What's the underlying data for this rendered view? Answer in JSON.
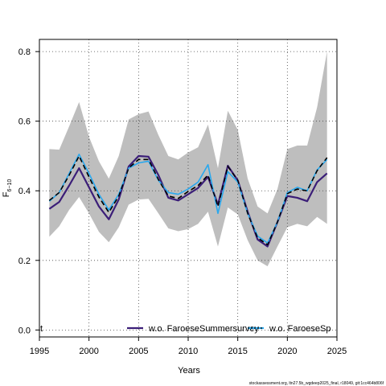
{
  "chart_data": {
    "type": "line",
    "title": "",
    "xlabel": "Years",
    "ylabel_main": "F",
    "ylabel_sub": "6−10",
    "xlim": [
      1995,
      2025
    ],
    "ylim": [
      -0.02,
      0.835
    ],
    "x_ticks": [
      1995,
      2000,
      2005,
      2010,
      2015,
      2020,
      2025
    ],
    "y_ticks": [
      0.0,
      0.2,
      0.4,
      0.6,
      0.8
    ],
    "y_tick_labels": [
      "0.0",
      "0.2",
      "0.4",
      "0.6",
      "0.8"
    ],
    "grid": true,
    "x": [
      1996,
      1997,
      1998,
      1999,
      2000,
      2001,
      2002,
      2003,
      2004,
      2005,
      2006,
      2007,
      2008,
      2009,
      2010,
      2011,
      2012,
      2013,
      2014,
      2015,
      2016,
      2017,
      2018,
      2019,
      2020,
      2021,
      2022,
      2023,
      2024
    ],
    "band": {
      "color": "#bebebe",
      "upper": [
        0.52,
        0.518,
        0.585,
        0.655,
        0.555,
        0.485,
        0.435,
        0.5,
        0.605,
        0.62,
        0.628,
        0.56,
        0.5,
        0.49,
        0.51,
        0.525,
        0.59,
        0.465,
        0.63,
        0.575,
        0.435,
        0.355,
        0.335,
        0.405,
        0.52,
        0.53,
        0.53,
        0.64,
        0.8
      ],
      "lower": [
        0.268,
        0.298,
        0.345,
        0.382,
        0.335,
        0.282,
        0.252,
        0.295,
        0.36,
        0.375,
        0.377,
        0.335,
        0.292,
        0.284,
        0.29,
        0.305,
        0.34,
        0.24,
        0.352,
        0.332,
        0.258,
        0.2,
        0.183,
        0.24,
        0.295,
        0.305,
        0.298,
        0.325,
        0.305
      ]
    },
    "series": [
      {
        "name": "",
        "role": "base",
        "color": "#000000",
        "dash": "6,4",
        "width": 1.6,
        "values": [
          0.372,
          0.395,
          0.445,
          0.5,
          0.44,
          0.382,
          0.338,
          0.385,
          0.465,
          0.49,
          0.49,
          0.432,
          0.385,
          0.378,
          0.398,
          0.415,
          0.445,
          0.355,
          0.47,
          0.43,
          0.335,
          0.265,
          0.245,
          0.31,
          0.392,
          0.405,
          0.4,
          0.458,
          0.495
        ]
      },
      {
        "name": "w.o. FaroeseSummersurvey",
        "role": "retro",
        "color": "#3b1e78",
        "dash": "",
        "width": 2.2,
        "values": [
          0.348,
          0.368,
          0.415,
          0.465,
          0.41,
          0.355,
          0.318,
          0.375,
          0.47,
          0.5,
          0.498,
          0.445,
          0.38,
          0.372,
          0.39,
          0.408,
          0.44,
          0.36,
          0.472,
          0.43,
          0.34,
          0.26,
          0.24,
          0.31,
          0.385,
          0.38,
          0.37,
          0.425,
          0.45
        ]
      },
      {
        "name": "w.o. FaroeseSp",
        "role": "retro",
        "color": "#29a8ee",
        "dash": "",
        "width": 1.6,
        "values": [
          0.37,
          0.395,
          0.45,
          0.505,
          0.45,
          0.39,
          0.345,
          0.39,
          0.465,
          0.48,
          0.485,
          0.43,
          0.395,
          0.39,
          0.405,
          0.425,
          0.475,
          0.335,
          0.455,
          0.425,
          0.335,
          0.27,
          0.25,
          0.31,
          0.395,
          0.41,
          0.4,
          0.46,
          0.49
        ]
      }
    ],
    "legend": {
      "placement": "bottom",
      "leading_fragment": "t",
      "entries": [
        {
          "label": "w.o. FaroeseSummersurvey",
          "color": "#3b1e78",
          "dash": ""
        },
        {
          "label": "w.o. FaroeseSp",
          "color": "#29a8ee",
          "dash": "2,2",
          "overlay_dash_color": "#000000"
        }
      ]
    },
    "footer_note": "stockassessment.org, ltn27.5b_wgdeep2025_final, r18049, git:1cc464b806f"
  }
}
